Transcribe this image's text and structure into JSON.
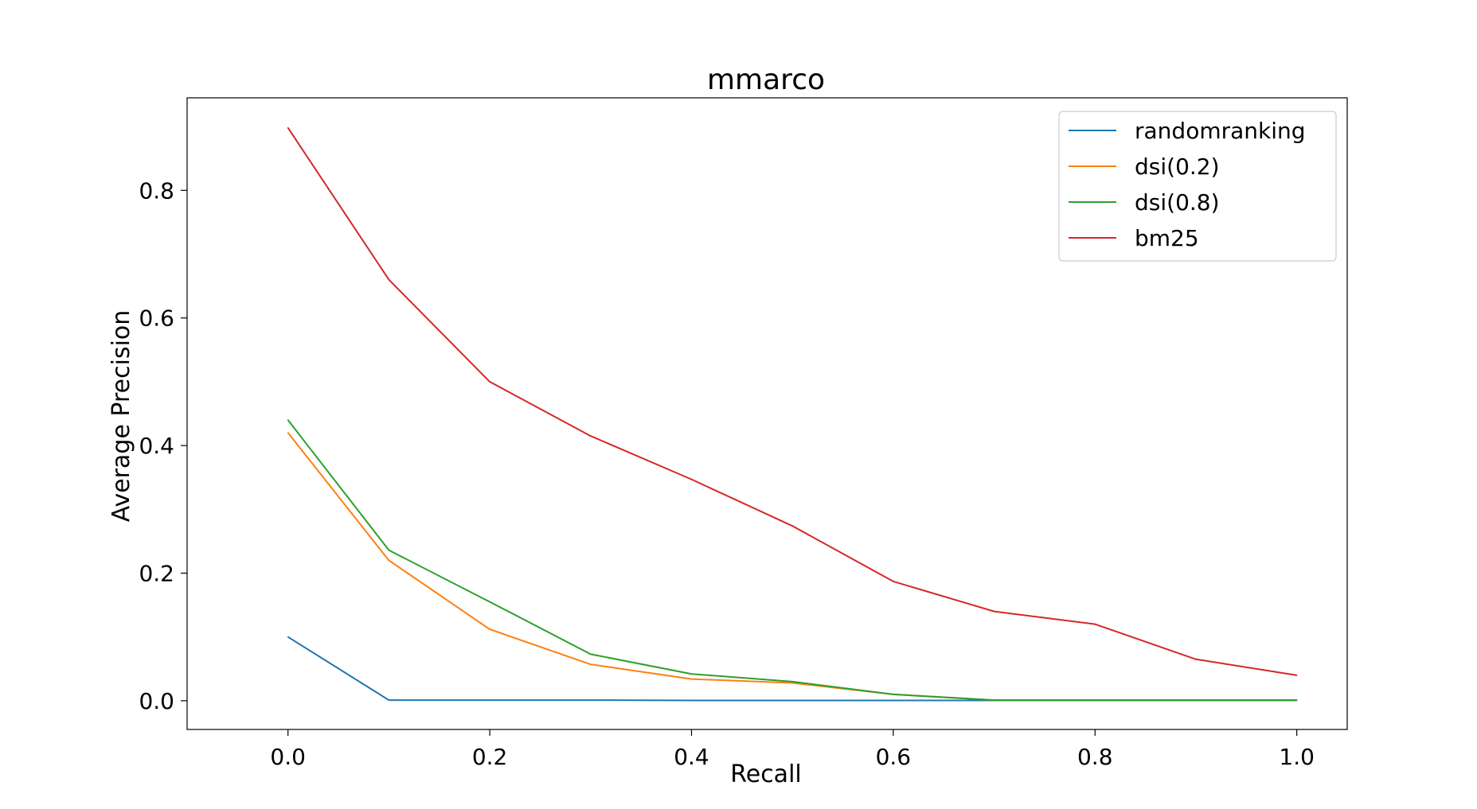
{
  "chart_data": {
    "type": "line",
    "title": "mmarco",
    "xlabel": "Recall",
    "ylabel": "Average Precision",
    "xlim": [
      -0.1,
      1.05
    ],
    "ylim": [
      -0.045,
      0.945
    ],
    "xticks": [
      0.0,
      0.2,
      0.4,
      0.6,
      0.8,
      1.0
    ],
    "xtick_labels": [
      "0.0",
      "0.2",
      "0.4",
      "0.6",
      "0.8",
      "1.0"
    ],
    "yticks": [
      0.0,
      0.2,
      0.4,
      0.6,
      0.8
    ],
    "ytick_labels": [
      "0.0",
      "0.2",
      "0.4",
      "0.6",
      "0.8"
    ],
    "grid": false,
    "legend_position": "top-right",
    "x": [
      0.0,
      0.1,
      0.2,
      0.3,
      0.4,
      0.5,
      0.6,
      0.7,
      0.8,
      0.9,
      1.0
    ],
    "series": [
      {
        "name": "randomranking",
        "color": "#1f77b4",
        "values": [
          0.1,
          0.001,
          0.001,
          0.001,
          0.0005,
          0.0005,
          0.0005,
          0.0005,
          0.0005,
          0.0005,
          0.0005
        ]
      },
      {
        "name": "dsi(0.2)",
        "color": "#ff7f0e",
        "values": [
          0.42,
          0.22,
          0.112,
          0.057,
          0.034,
          0.028,
          0.01,
          0.001,
          0.001,
          0.001,
          0.001
        ]
      },
      {
        "name": "dsi(0.8)",
        "color": "#2ca02c",
        "values": [
          0.44,
          0.236,
          0.155,
          0.073,
          0.042,
          0.03,
          0.01,
          0.001,
          0.001,
          0.001,
          0.001
        ]
      },
      {
        "name": "bm25",
        "color": "#d62728",
        "values": [
          0.898,
          0.66,
          0.5,
          0.415,
          0.347,
          0.274,
          0.187,
          0.14,
          0.12,
          0.065,
          0.04
        ]
      }
    ]
  }
}
